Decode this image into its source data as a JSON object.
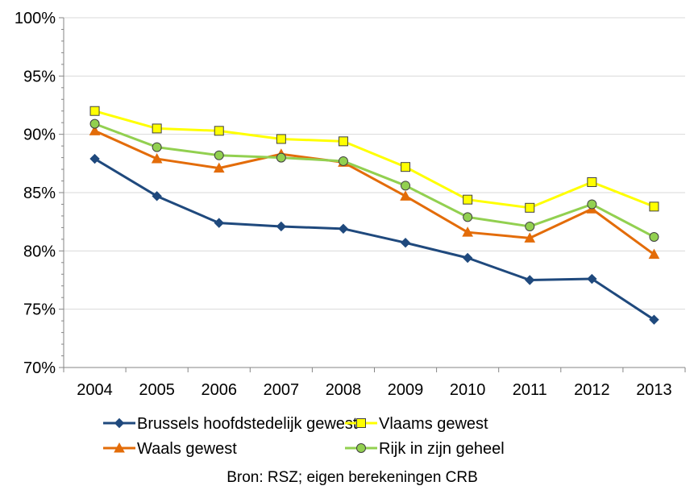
{
  "chart_data": {
    "type": "line",
    "x": [
      "2004",
      "2005",
      "2006",
      "2007",
      "2008",
      "2009",
      "2010",
      "2011",
      "2012",
      "2013"
    ],
    "ylim": [
      0.7,
      1.0
    ],
    "yticks": [
      0.7,
      0.75,
      0.8,
      0.85,
      0.9,
      0.95,
      1.0
    ],
    "ytick_labels": [
      "70%",
      "75%",
      "80%",
      "85%",
      "90%",
      "95%",
      "100%"
    ],
    "grid": "horizontal",
    "legend_position": "bottom",
    "series": [
      {
        "name": "Brussels hoofdstedelijk gewest",
        "color": "#1f497d",
        "marker": "diamond",
        "values": [
          0.879,
          0.847,
          0.824,
          0.821,
          0.819,
          0.807,
          0.794,
          0.775,
          0.776,
          0.741
        ]
      },
      {
        "name": "Vlaams gewest",
        "color": "#ffff00",
        "marker": "square",
        "values": [
          0.92,
          0.905,
          0.903,
          0.896,
          0.894,
          0.872,
          0.844,
          0.837,
          0.859,
          0.838
        ]
      },
      {
        "name": "Waals gewest",
        "color": "#e36c09",
        "marker": "triangle",
        "values": [
          0.903,
          0.879,
          0.871,
          0.883,
          0.876,
          0.847,
          0.816,
          0.811,
          0.836,
          0.797
        ]
      },
      {
        "name": "Rijk in zijn geheel",
        "color": "#92d050",
        "marker": "circle",
        "values": [
          0.909,
          0.889,
          0.882,
          0.88,
          0.877,
          0.856,
          0.829,
          0.821,
          0.84,
          0.812
        ]
      }
    ]
  },
  "source_note": "Bron: RSZ; eigen berekeningen CRB"
}
